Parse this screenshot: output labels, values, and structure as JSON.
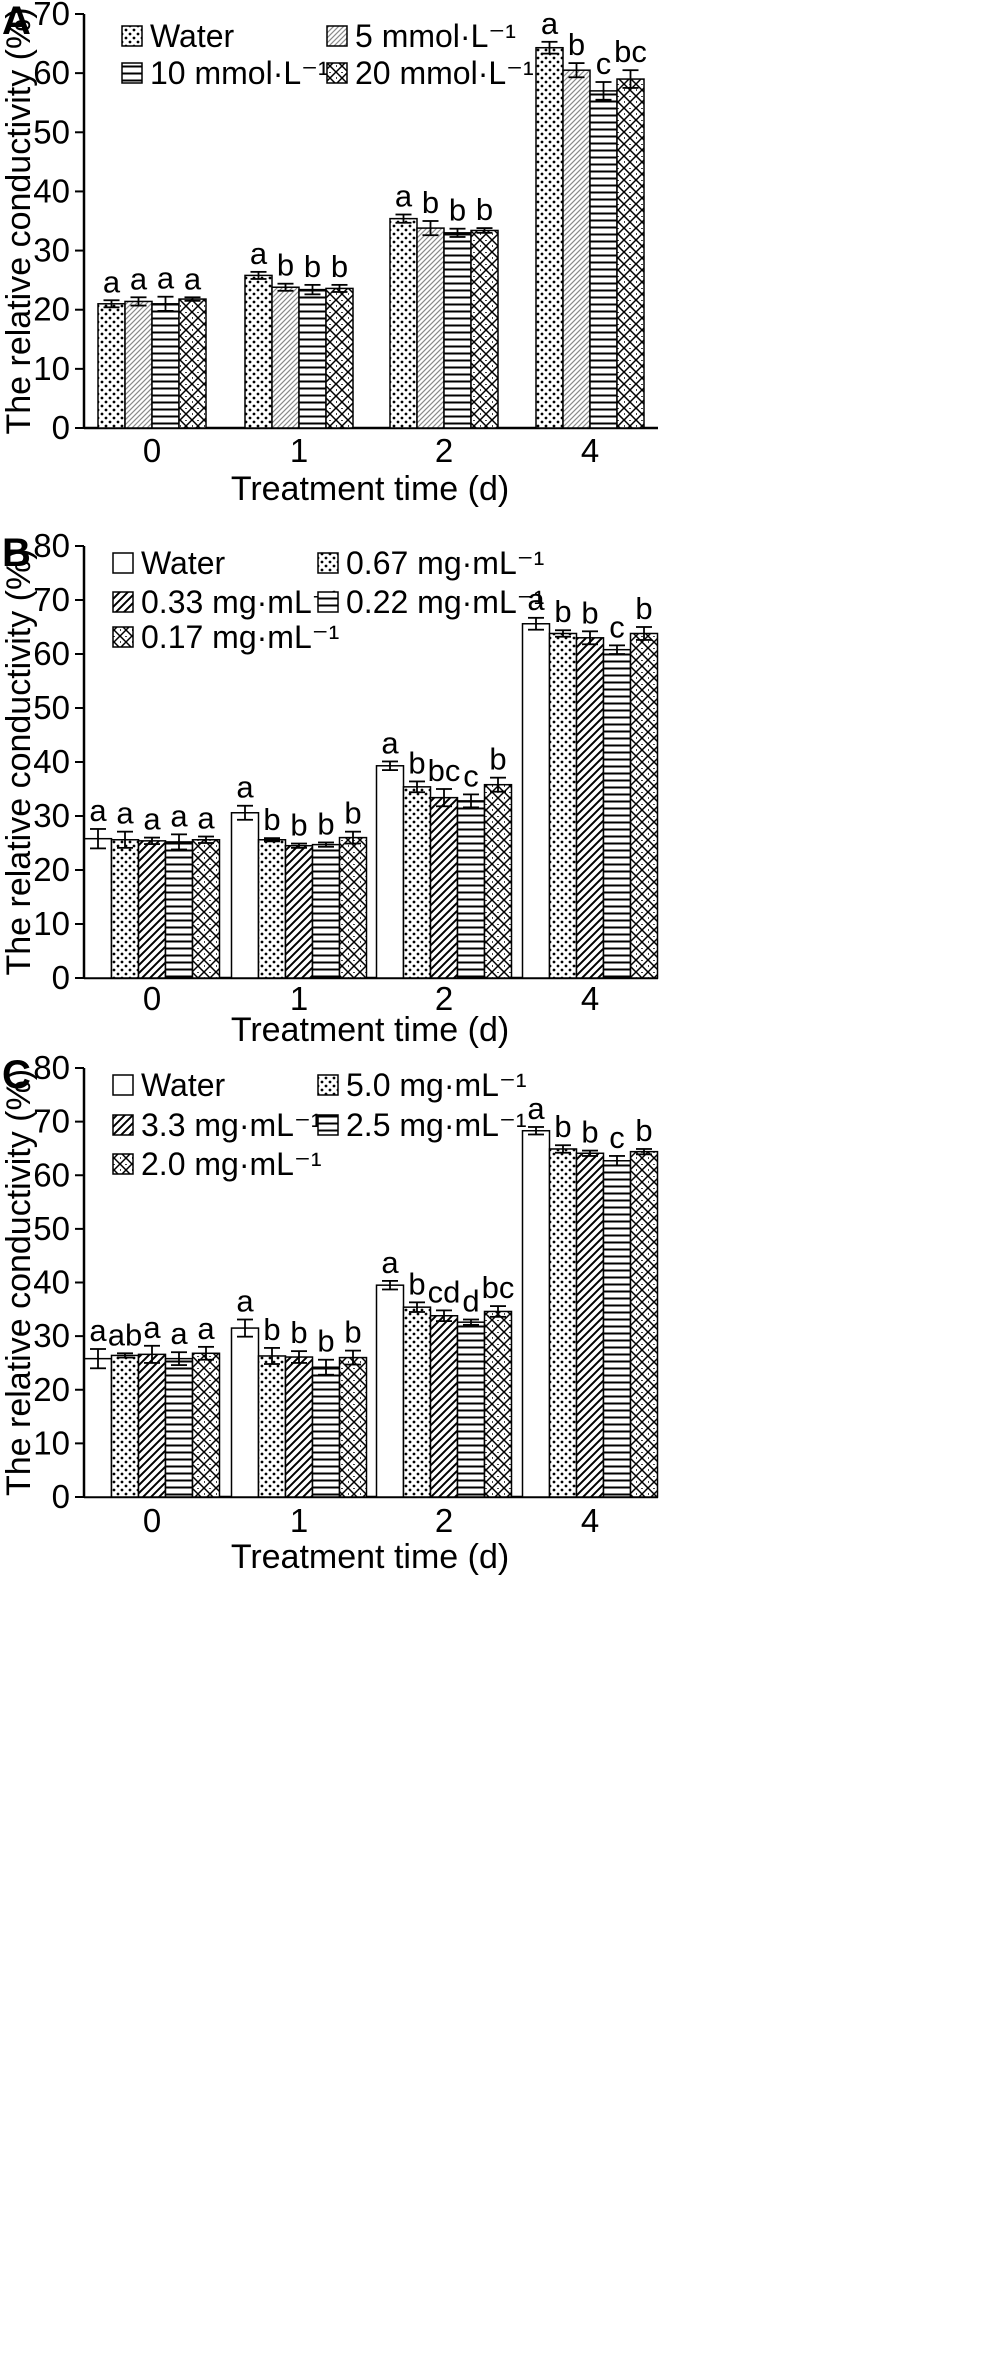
{
  "chart_data": [
    {
      "panel": "A",
      "type": "bar",
      "xlabel": "Treatment time (d)",
      "ylabel": "The relative conductivity (%)",
      "categories": [
        "0",
        "1",
        "2",
        "4"
      ],
      "ylim": [
        0,
        70
      ],
      "yticks": [
        0,
        10,
        20,
        30,
        40,
        50,
        60,
        70
      ],
      "legend_columns": 2,
      "series": [
        {
          "name": "Water",
          "pattern": "dots",
          "values": [
            21.0,
            25.8,
            35.4,
            64.3
          ],
          "errors": [
            0.6,
            0.6,
            0.7,
            1.0
          ],
          "letters": [
            "a",
            "a",
            "a",
            "a"
          ]
        },
        {
          "name": "5 mmol·L⁻¹",
          "pattern": "diag-fine",
          "values": [
            21.4,
            23.8,
            33.8,
            60.5
          ],
          "errors": [
            0.7,
            0.6,
            1.2,
            1.2
          ],
          "letters": [
            "a",
            "b",
            "b",
            "b"
          ]
        },
        {
          "name": "10 mmol·L⁻¹",
          "pattern": "hlines",
          "values": [
            21.0,
            23.4,
            33.0,
            57.0
          ],
          "errors": [
            1.2,
            0.8,
            0.7,
            1.5
          ],
          "letters": [
            "a",
            "b",
            "b",
            "c"
          ]
        },
        {
          "name": "20 mmol·L⁻¹",
          "pattern": "crosshatch",
          "values": [
            21.8,
            23.6,
            33.4,
            59.0
          ],
          "errors": [
            0.3,
            0.6,
            0.4,
            1.5
          ],
          "letters": [
            "a",
            "b",
            "b",
            "bc"
          ]
        }
      ]
    },
    {
      "panel": "B",
      "type": "bar",
      "xlabel": "Treatment time (d)",
      "ylabel": "The relative conductivity (%)",
      "categories": [
        "0",
        "1",
        "2",
        "4"
      ],
      "ylim": [
        0,
        80
      ],
      "yticks": [
        0,
        10,
        20,
        30,
        40,
        50,
        60,
        70,
        80
      ],
      "legend_columns": 2,
      "series": [
        {
          "name": "Water",
          "pattern": "empty",
          "values": [
            25.8,
            30.6,
            39.3,
            65.6
          ],
          "errors": [
            1.8,
            1.3,
            0.8,
            1.1
          ],
          "letters": [
            "a",
            "a",
            "a",
            "a"
          ]
        },
        {
          "name": "0.67 mg·mL⁻¹",
          "pattern": "dots",
          "values": [
            25.6,
            25.6,
            35.4,
            63.8
          ],
          "errors": [
            1.5,
            0.3,
            1.0,
            0.6
          ],
          "letters": [
            "a",
            "b",
            "b",
            "b"
          ]
        },
        {
          "name": "0.33 mg·mL⁻¹",
          "pattern": "diag",
          "values": [
            25.4,
            24.5,
            33.4,
            63.0
          ],
          "errors": [
            0.6,
            0.4,
            1.6,
            1.2
          ],
          "letters": [
            "a",
            "b",
            "bc",
            "b"
          ]
        },
        {
          "name": "0.22 mg·mL⁻¹",
          "pattern": "hlines",
          "values": [
            25.2,
            24.7,
            32.8,
            60.8
          ],
          "errors": [
            1.4,
            0.4,
            1.2,
            0.8
          ],
          "letters": [
            "a",
            "b",
            "c",
            "c"
          ]
        },
        {
          "name": "0.17 mg·mL⁻¹",
          "pattern": "crosshatch",
          "values": [
            25.6,
            26.0,
            35.8,
            63.8
          ],
          "errors": [
            0.6,
            1.1,
            1.3,
            1.2
          ],
          "letters": [
            "a",
            "b",
            "b",
            "b"
          ]
        }
      ]
    },
    {
      "panel": "C",
      "type": "bar",
      "xlabel": "Treatment time (d)",
      "ylabel": "The relative conductivity (%)",
      "categories": [
        "0",
        "1",
        "2",
        "4"
      ],
      "ylim": [
        0,
        80
      ],
      "yticks": [
        0,
        10,
        20,
        30,
        40,
        50,
        60,
        70,
        80
      ],
      "legend_columns": 2,
      "series": [
        {
          "name": "Water",
          "pattern": "empty",
          "values": [
            25.8,
            31.5,
            39.5,
            68.3
          ],
          "errors": [
            1.8,
            1.6,
            0.8,
            0.7
          ],
          "letters": [
            "a",
            "a",
            "a",
            "a"
          ]
        },
        {
          "name": "5.0 mg·mL⁻¹",
          "pattern": "dots",
          "values": [
            26.4,
            26.3,
            35.4,
            64.9
          ],
          "errors": [
            0.4,
            1.5,
            0.9,
            0.7
          ],
          "letters": [
            "ab",
            "b",
            "b",
            "b"
          ]
        },
        {
          "name": "3.3 mg·mL⁻¹",
          "pattern": "diag",
          "values": [
            26.6,
            26.1,
            33.8,
            64.1
          ],
          "errors": [
            1.6,
            1.1,
            1.0,
            0.5
          ],
          "letters": [
            "a",
            "b",
            "cd",
            "b"
          ]
        },
        {
          "name": "2.5 mg·mL⁻¹",
          "pattern": "hlines",
          "values": [
            25.8,
            24.2,
            32.6,
            62.7
          ],
          "errors": [
            1.2,
            1.4,
            0.5,
            0.9
          ],
          "letters": [
            "a",
            "b",
            "d",
            "c"
          ]
        },
        {
          "name": "2.0 mg·mL⁻¹",
          "pattern": "crosshatch",
          "values": [
            26.8,
            26.0,
            34.6,
            64.4
          ],
          "errors": [
            1.2,
            1.3,
            1.0,
            0.5
          ],
          "letters": [
            "a",
            "b",
            "bc",
            "b"
          ]
        }
      ]
    }
  ]
}
